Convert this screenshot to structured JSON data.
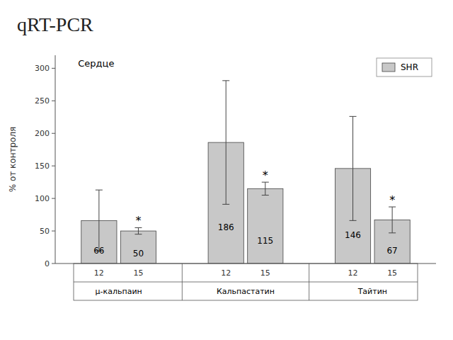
{
  "chart_data": {
    "type": "bar",
    "title": "qRT-PCR",
    "subtitle": "Сердце",
    "ylabel": "% от контроля",
    "categories": [
      "μ-кальпаин",
      "Кальпастатин",
      "Тайтин"
    ],
    "subcategories": [
      "12",
      "15"
    ],
    "series": [
      {
        "name": "SHR",
        "color": "#c8c8c8",
        "values": [
          [
            66,
            50
          ],
          [
            186,
            115
          ],
          [
            146,
            67
          ]
        ],
        "error_upper": [
          [
            47,
            5
          ],
          [
            95,
            10
          ],
          [
            80,
            20
          ]
        ],
        "error_lower": [
          [
            47,
            5
          ],
          [
            95,
            10
          ],
          [
            80,
            20
          ]
        ]
      }
    ],
    "annotations": [
      {
        "text": "*",
        "at": [
          0,
          1
        ]
      },
      {
        "text": "*",
        "at": [
          1,
          1
        ]
      },
      {
        "text": "*",
        "at": [
          2,
          1
        ]
      }
    ],
    "ylim": [
      0,
      320
    ],
    "yticks": [
      0,
      50,
      100,
      150,
      200,
      250,
      300
    ],
    "grid": false,
    "legend": "upper right",
    "data_labels": true
  }
}
